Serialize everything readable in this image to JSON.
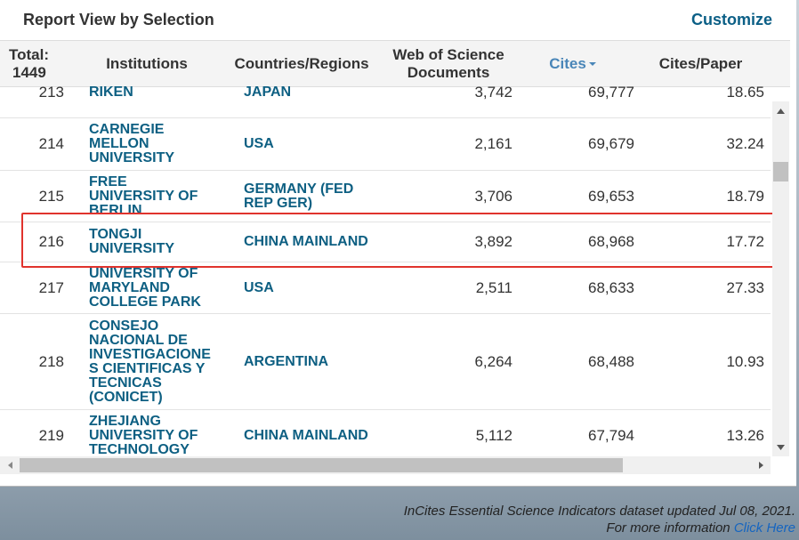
{
  "header": {
    "title": "Report View by Selection",
    "action": "Customize"
  },
  "table": {
    "total_label": "Total:",
    "total": "1449",
    "columns": [
      "Institutions",
      "Countries/Regions",
      "Web of Science Documents",
      "Cites",
      "Cites/Paper"
    ],
    "rows": [
      [
        "213",
        "RIKEN",
        "JAPAN",
        "3,742",
        "69,777",
        "18.65"
      ],
      [
        "214",
        "CARNEGIE MELLON UNIVERSITY",
        "USA",
        "2,161",
        "69,679",
        "32.24"
      ],
      [
        "215",
        "FREE UNIVERSITY OF BERLIN",
        "GERMANY (FED REP GER)",
        "3,706",
        "69,653",
        "18.79"
      ],
      [
        "216",
        "TONGJI UNIVERSITY",
        "CHINA MAINLAND",
        "3,892",
        "68,968",
        "17.72"
      ],
      [
        "217",
        "UNIVERSITY OF MARYLAND COLLEGE PARK",
        "USA",
        "2,511",
        "68,633",
        "27.33"
      ],
      [
        "218",
        "CONSEJO NACIONAL DE INVESTIGACIONES CIENTIFICAS Y TECNICAS (CONICET)",
        "ARGENTINA",
        "6,264",
        "68,488",
        "10.93"
      ],
      [
        "219",
        "ZHEJIANG UNIVERSITY OF TECHNOLOGY",
        "CHINA MAINLAND",
        "5,112",
        "67,794",
        "13.26"
      ]
    ]
  },
  "footer": {
    "note": "InCites Essential Science Indicators dataset updated Jul 08, 2021.",
    "more": "For more information",
    "link": "Click Here"
  }
}
